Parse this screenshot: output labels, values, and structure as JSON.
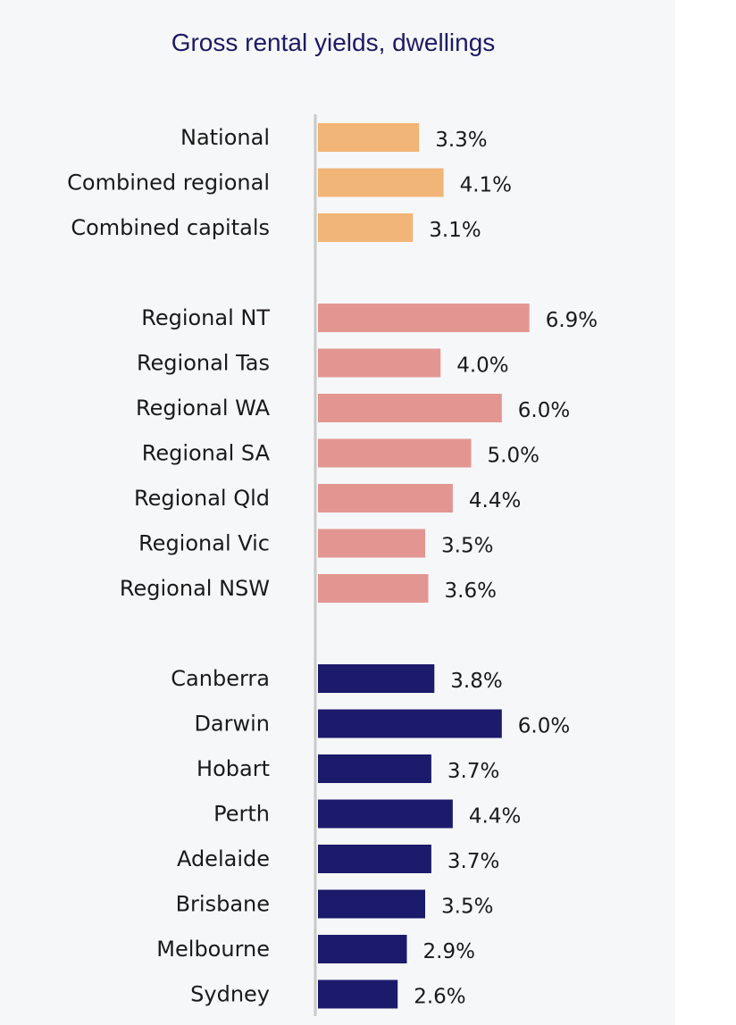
{
  "chart_data": {
    "type": "bar",
    "orientation": "horizontal",
    "title": "Gross rental yields, dwellings",
    "xlabel": "",
    "ylabel": "",
    "xlim": [
      0,
      7
    ],
    "grid": false,
    "colors": {
      "aggregate": "#f0b577",
      "regional": "#e39691",
      "capital": "#1c1a6b",
      "axis": "#c9c9c9"
    },
    "groups": [
      {
        "name": "aggregate",
        "items": [
          {
            "category": "National",
            "value": 3.3,
            "label": "3.3%"
          },
          {
            "category": "Combined regional",
            "value": 4.1,
            "label": "4.1%"
          },
          {
            "category": "Combined capitals",
            "value": 3.1,
            "label": "3.1%"
          }
        ]
      },
      {
        "name": "regional",
        "items": [
          {
            "category": "Regional NT",
            "value": 6.9,
            "label": "6.9%"
          },
          {
            "category": "Regional Tas",
            "value": 4.0,
            "label": "4.0%"
          },
          {
            "category": "Regional WA",
            "value": 6.0,
            "label": "6.0%"
          },
          {
            "category": "Regional SA",
            "value": 5.0,
            "label": "5.0%"
          },
          {
            "category": "Regional Qld",
            "value": 4.4,
            "label": "4.4%"
          },
          {
            "category": "Regional Vic",
            "value": 3.5,
            "label": "3.5%"
          },
          {
            "category": "Regional NSW",
            "value": 3.6,
            "label": "3.6%"
          }
        ]
      },
      {
        "name": "capital",
        "items": [
          {
            "category": "Canberra",
            "value": 3.8,
            "label": "3.8%"
          },
          {
            "category": "Darwin",
            "value": 6.0,
            "label": "6.0%"
          },
          {
            "category": "Hobart",
            "value": 3.7,
            "label": "3.7%"
          },
          {
            "category": "Perth",
            "value": 4.4,
            "label": "4.4%"
          },
          {
            "category": "Adelaide",
            "value": 3.7,
            "label": "3.7%"
          },
          {
            "category": "Brisbane",
            "value": 3.5,
            "label": "3.5%"
          },
          {
            "category": "Melbourne",
            "value": 2.9,
            "label": "2.9%"
          },
          {
            "category": "Sydney",
            "value": 2.6,
            "label": "2.6%"
          }
        ]
      }
    ]
  }
}
